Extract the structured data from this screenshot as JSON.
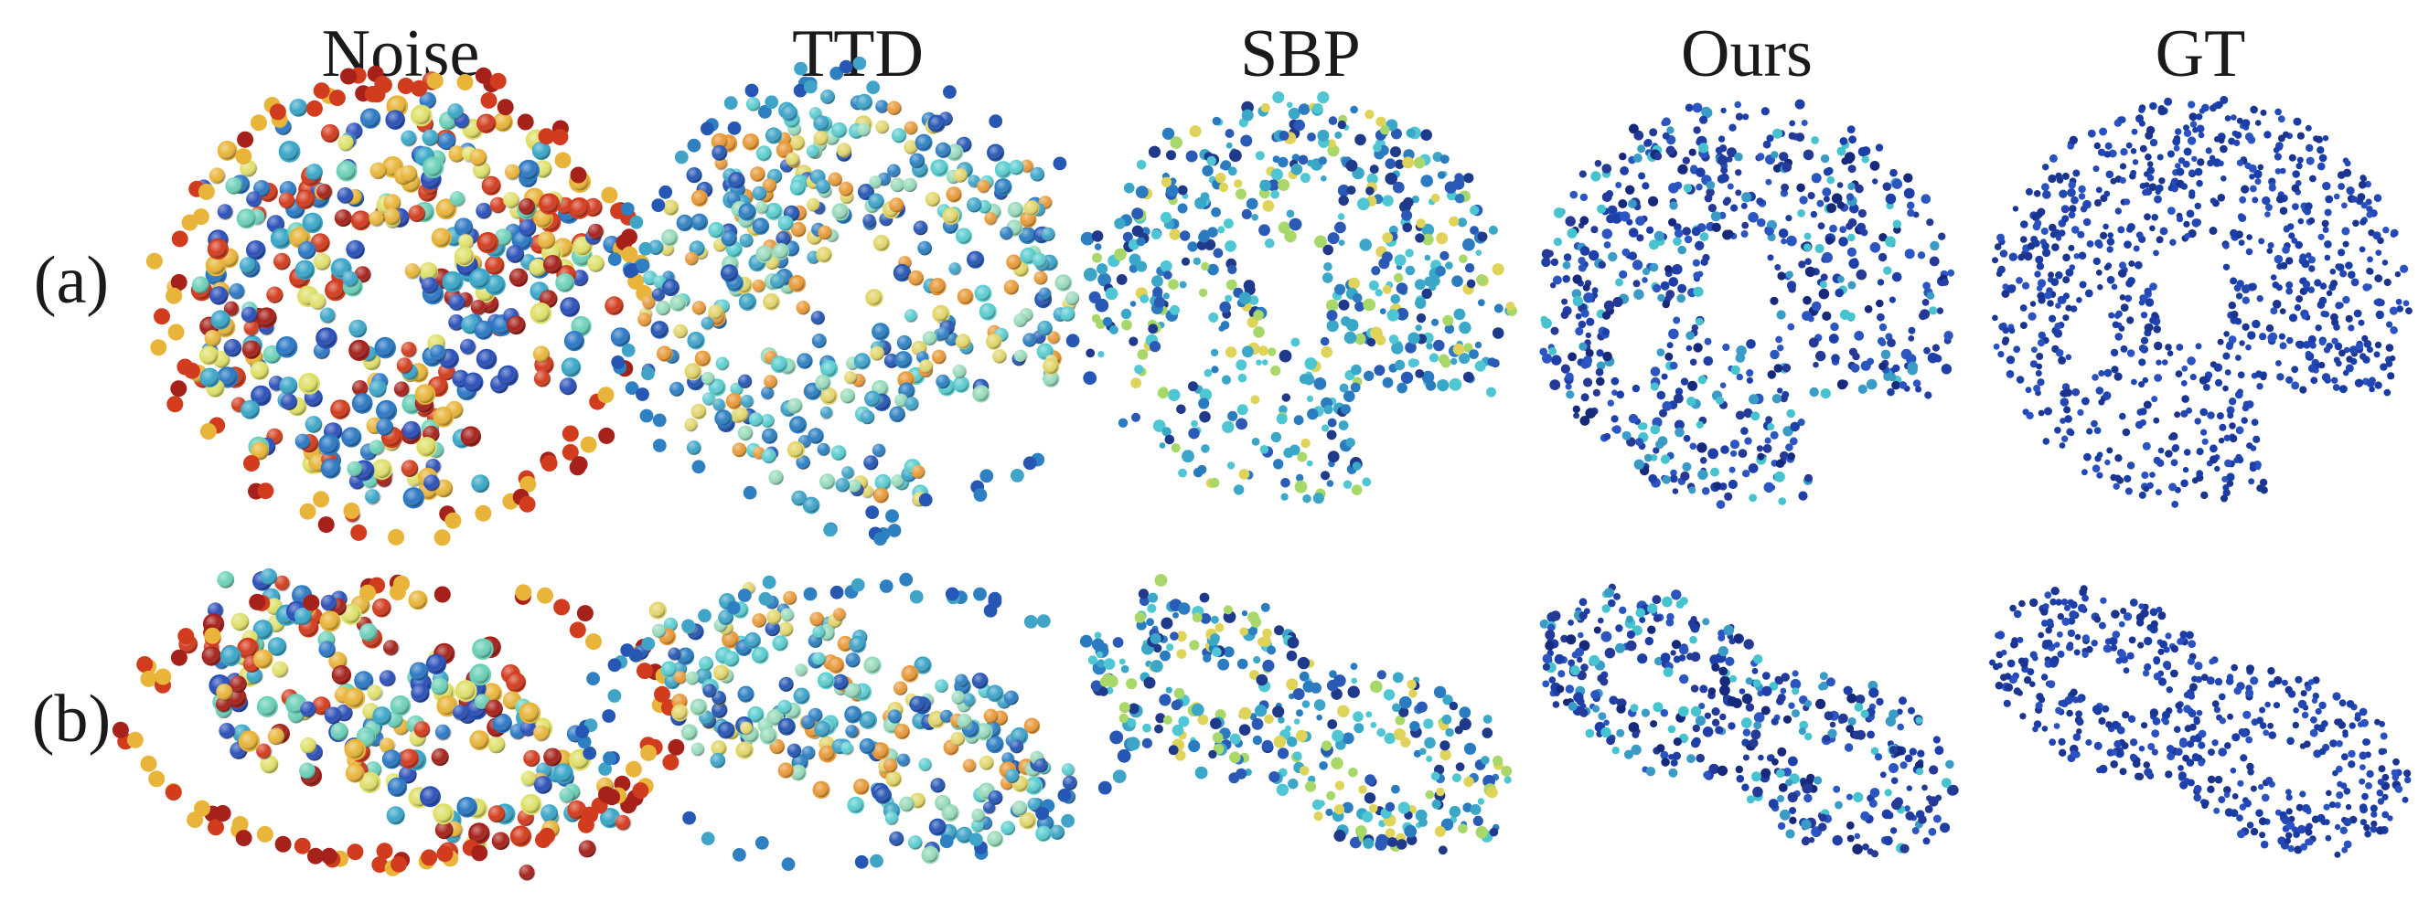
{
  "columns": [
    {
      "id": "noise",
      "label": "Noise",
      "noise_level": 1.0,
      "palette": [
        "#d23c1e",
        "#a5211a",
        "#e8b53a",
        "#dfe06a",
        "#6cd0b8",
        "#3aa6c8",
        "#2b78c4",
        "#2a4fb8"
      ]
    },
    {
      "id": "ttd",
      "label": "TTD",
      "noise_level": 0.7,
      "palette": [
        "#3fa4c8",
        "#2e80c2",
        "#2757b4",
        "#5ccdd0",
        "#9adbbc",
        "#e2d66c",
        "#e89a3a"
      ]
    },
    {
      "id": "sbp",
      "label": "SBP",
      "noise_level": 0.3,
      "palette": [
        "#3aa6c8",
        "#4fc6d3",
        "#2b7bc1",
        "#2a5ab6",
        "#a9d86a",
        "#dfd35a",
        "#1f3a8a"
      ]
    },
    {
      "id": "ours",
      "label": "Ours",
      "noise_level": 0.15,
      "palette": [
        "#1f3fa8",
        "#243a96",
        "#2b55c0",
        "#3a9bc6",
        "#45c3cf",
        "#16297a"
      ]
    },
    {
      "id": "gt",
      "label": "GT",
      "noise_level": 0.0,
      "palette": [
        "#1b3ea6",
        "#2347b5",
        "#1a3490",
        "#2a52c2"
      ]
    }
  ],
  "rows": [
    {
      "id": "a",
      "label": "(a)",
      "shape": "knotted-sphere"
    },
    {
      "id": "b",
      "label": "(b)",
      "shape": "double-torus"
    }
  ],
  "colors": {
    "background": "#ffffff",
    "text": "#1a1a1a",
    "hole": "#ffffff"
  }
}
